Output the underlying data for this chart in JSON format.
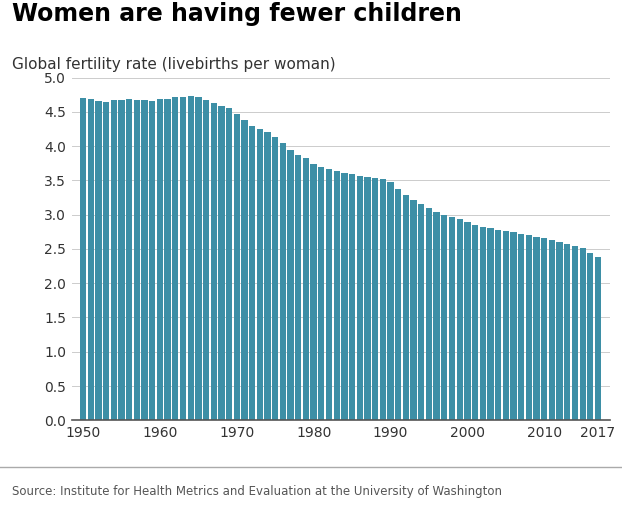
{
  "title": "Women are having fewer children",
  "subtitle": "Global fertility rate (livebirths per woman)",
  "source": "Source: Institute for Health Metrics and Evaluation at the University of Washington",
  "bar_color": "#3d8fa6",
  "background_color": "#ffffff",
  "footer_bg": "#e0e0e0",
  "years": [
    1950,
    1951,
    1952,
    1953,
    1954,
    1955,
    1956,
    1957,
    1958,
    1959,
    1960,
    1961,
    1962,
    1963,
    1964,
    1965,
    1966,
    1967,
    1968,
    1969,
    1970,
    1971,
    1972,
    1973,
    1974,
    1975,
    1976,
    1977,
    1978,
    1979,
    1980,
    1981,
    1982,
    1983,
    1984,
    1985,
    1986,
    1987,
    1988,
    1989,
    1990,
    1991,
    1992,
    1993,
    1994,
    1995,
    1996,
    1997,
    1998,
    1999,
    2000,
    2001,
    2002,
    2003,
    2004,
    2005,
    2006,
    2007,
    2008,
    2009,
    2010,
    2011,
    2012,
    2013,
    2014,
    2015,
    2016,
    2017
  ],
  "values": [
    4.7,
    4.68,
    4.66,
    4.65,
    4.67,
    4.67,
    4.68,
    4.67,
    4.67,
    4.66,
    4.68,
    4.69,
    4.71,
    4.72,
    4.73,
    4.72,
    4.67,
    4.63,
    4.58,
    4.55,
    4.47,
    4.38,
    4.29,
    4.25,
    4.21,
    4.13,
    4.04,
    3.95,
    3.87,
    3.82,
    3.74,
    3.69,
    3.66,
    3.63,
    3.61,
    3.59,
    3.57,
    3.55,
    3.54,
    3.52,
    3.47,
    3.38,
    3.28,
    3.22,
    3.15,
    3.09,
    3.04,
    3.0,
    2.96,
    2.93,
    2.9,
    2.85,
    2.82,
    2.8,
    2.78,
    2.76,
    2.74,
    2.72,
    2.7,
    2.68,
    2.66,
    2.63,
    2.6,
    2.57,
    2.55,
    2.52,
    2.44,
    2.38
  ],
  "ylim": [
    0,
    5.0
  ],
  "yticks": [
    0,
    0.5,
    1.0,
    1.5,
    2.0,
    2.5,
    3.0,
    3.5,
    4.0,
    4.5,
    5.0
  ],
  "xtick_years": [
    1950,
    1960,
    1970,
    1980,
    1990,
    2000,
    2010,
    2017
  ],
  "title_fontsize": 17,
  "subtitle_fontsize": 11,
  "tick_fontsize": 10,
  "source_fontsize": 8.5,
  "bbc_fontsize": 11
}
